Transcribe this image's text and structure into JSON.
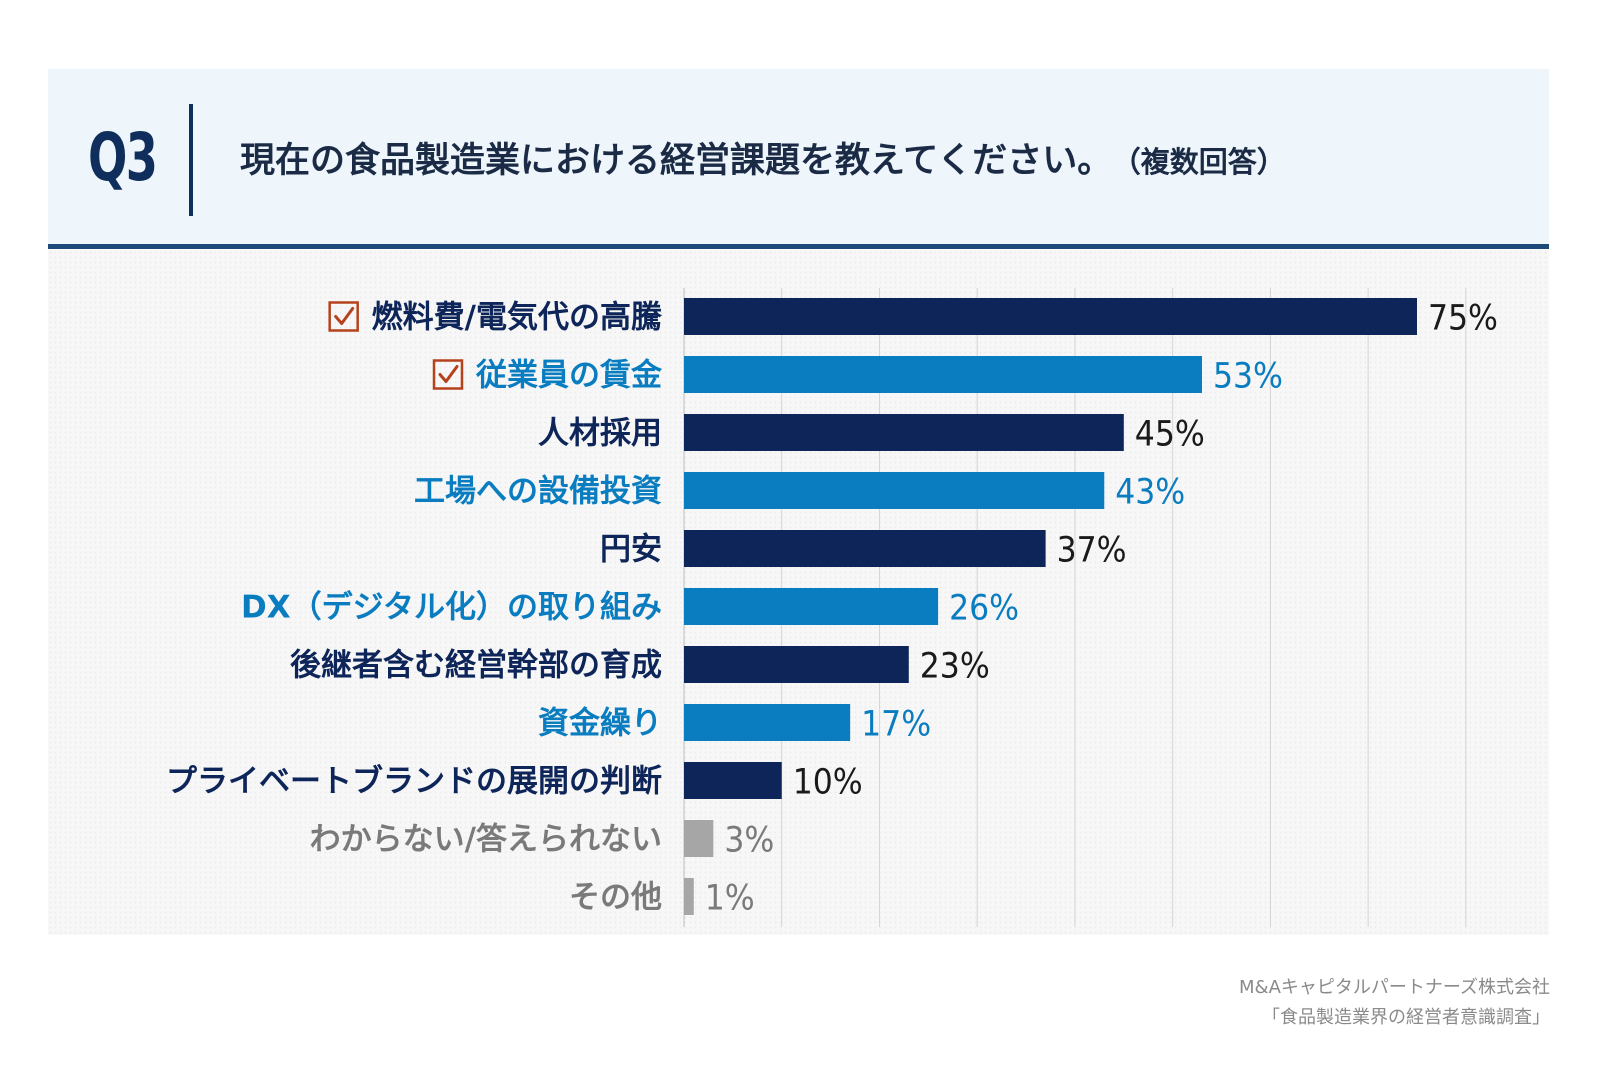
{
  "header": {
    "question_number": "Q3",
    "question_text": "現在の食品製造業における経営課題を教えてください。",
    "question_note": "（複数回答）"
  },
  "chart_data": {
    "type": "bar",
    "orientation": "horizontal",
    "title": "現在の食品製造業における経営課題を教えてください。（複数回答）",
    "xlim": [
      0,
      100
    ],
    "grid": true,
    "categories": [
      "燃料費/電気代の高騰",
      "従業員の賃金",
      "人材採用",
      "工場への設備投資",
      "円安",
      "DX（デジタル化）の取り組み",
      "後継者含む経営幹部の育成",
      "資金繰り",
      "プライベートブランドの展開の判断",
      "わからない/答えられない",
      "その他"
    ],
    "values": [
      75,
      53,
      45,
      43,
      37,
      26,
      23,
      17,
      10,
      3,
      1
    ],
    "value_labels": [
      "75%",
      "53%",
      "45%",
      "43%",
      "37%",
      "26%",
      "23%",
      "17%",
      "10%",
      "3%",
      "1%"
    ],
    "highlighted": [
      true,
      true,
      false,
      false,
      false,
      false,
      false,
      false,
      false,
      false,
      false
    ],
    "bar_colors": [
      "#0e2559",
      "#0a7cc0",
      "#0e2559",
      "#0a7cc0",
      "#0e2559",
      "#0a7cc0",
      "#0e2559",
      "#0a7cc0",
      "#0e2559",
      "#a6a6a6",
      "#a6a6a6"
    ],
    "label_colors": [
      "#0e2559",
      "#0a7cc0",
      "#0e2559",
      "#0a7cc0",
      "#0e2559",
      "#0a7cc0",
      "#0e2559",
      "#0a7cc0",
      "#0e2559",
      "#7a7a7a",
      "#7a7a7a"
    ],
    "value_colors": [
      "#1a1a1a",
      "#0a7cc0",
      "#1a1a1a",
      "#0a7cc0",
      "#1a1a1a",
      "#0a7cc0",
      "#1a1a1a",
      "#0a7cc0",
      "#1a1a1a",
      "#7a7a7a",
      "#7a7a7a"
    ],
    "check_color": "#b5421c"
  },
  "source": {
    "company": "M&Aキャピタルパートナーズ株式会社",
    "survey": "「食品製造業界の経営者意識調査」"
  }
}
